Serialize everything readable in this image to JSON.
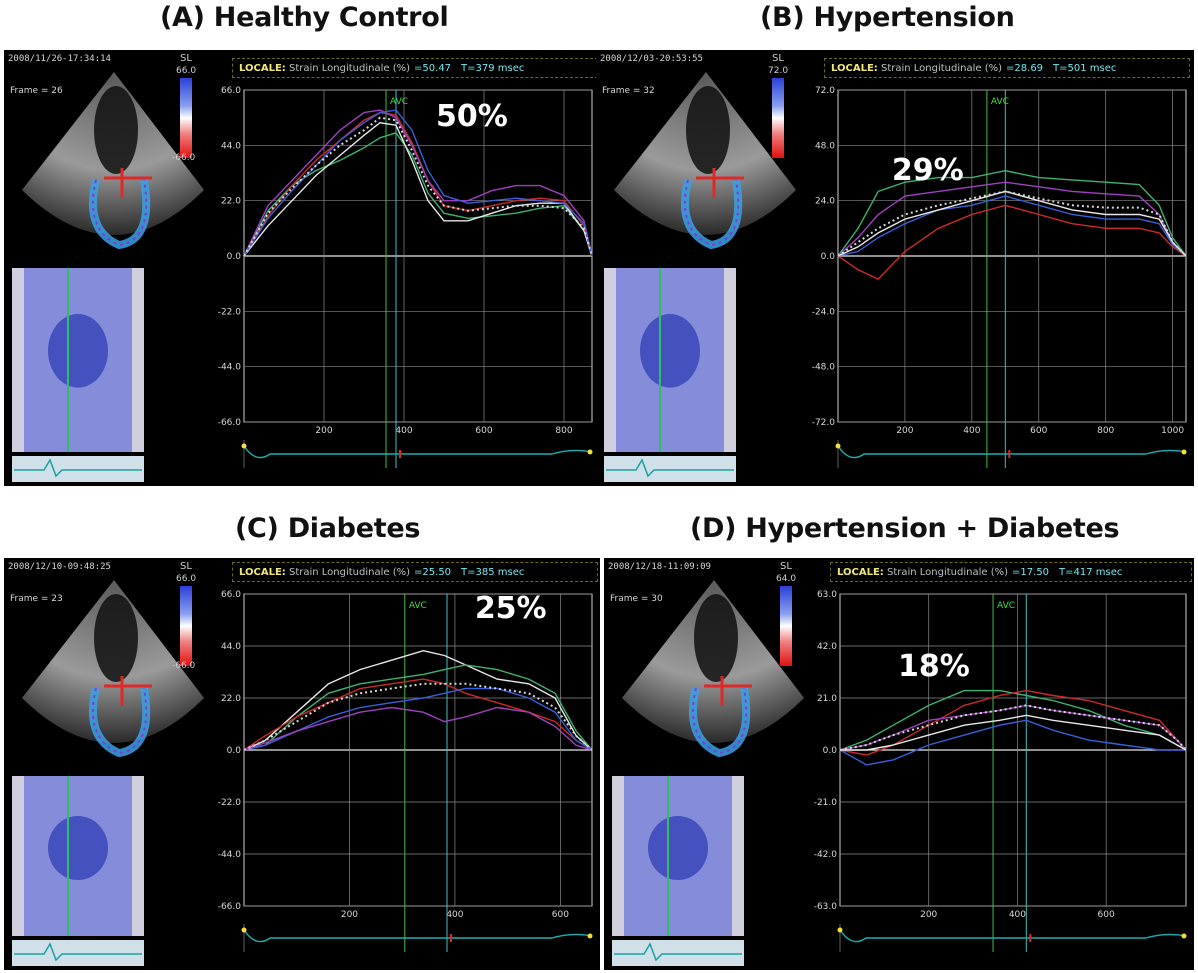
{
  "panels": [
    {
      "title": "(A) Healthy Control",
      "timestamp": "2008/11/26-17:34:14",
      "frame": "Frame = 26",
      "colorbar": {
        "label": "SL",
        "max": "66.0",
        "min": "-66.0"
      },
      "locale": {
        "label": "LOCALE:",
        "desc": "Strain Longitudinale (%)",
        "value": "=50.47",
        "time": "T=379 msec"
      },
      "annotation": "50%",
      "avc_label": "AVC"
    },
    {
      "title": "(B) Hypertension",
      "timestamp": "2008/12/03-20:53:55",
      "frame": "Frame = 32",
      "colorbar": {
        "label": "SL",
        "max": "72.0",
        "min": ""
      },
      "locale": {
        "label": "LOCALE:",
        "desc": "Strain Longitudinale (%)",
        "value": "=28.69",
        "time": "T=501 msec"
      },
      "annotation": "29%",
      "avc_label": "AVC"
    },
    {
      "title": "(C)  Diabetes",
      "timestamp": "2008/12/10-09:48:25",
      "frame": "Frame = 23",
      "colorbar": {
        "label": "SL",
        "max": "66.0",
        "min": "-66.0"
      },
      "locale": {
        "label": "LOCALE:",
        "desc": "Strain Longitudinale (%)",
        "value": "=25.50",
        "time": "T=385 msec"
      },
      "annotation": "25%",
      "avc_label": "AVC"
    },
    {
      "title": "(D)  Hypertension + Diabetes",
      "timestamp": "2008/12/18-11:09:09",
      "frame": "Frame = 30",
      "colorbar": {
        "label": "SL",
        "max": "64.0",
        "min": ""
      },
      "locale": {
        "label": "LOCALE:",
        "desc": "Strain Longitudinale (%)",
        "value": "=17.50",
        "time": "T=417 msec"
      },
      "annotation": "18%",
      "avc_label": "AVC"
    }
  ],
  "chart_data": [
    {
      "type": "line",
      "title": "(A) Healthy Control",
      "xlim": [
        0,
        870
      ],
      "ylim": [
        -66,
        66
      ],
      "yticks": [
        "66.0",
        "44.0",
        "22.0",
        "0.0",
        "-22.0",
        "-44.0",
        "-66.0"
      ],
      "xticks": [
        "200",
        "400",
        "600",
        "800"
      ],
      "avc_lines": [
        355,
        380
      ],
      "series": [
        {
          "color": "#3cb371",
          "x": [
            0,
            60,
            120,
            180,
            240,
            300,
            340,
            380,
            420,
            460,
            500,
            560,
            620,
            680,
            740,
            800,
            850,
            870
          ],
          "y": [
            0,
            18,
            28,
            34,
            38,
            43,
            47,
            49,
            40,
            25,
            17,
            15,
            16,
            17,
            19,
            20,
            10,
            0
          ]
        },
        {
          "color": "#e8e8e8",
          "x": [
            0,
            60,
            120,
            180,
            240,
            300,
            340,
            380,
            420,
            460,
            500,
            560,
            620,
            680,
            740,
            800,
            850,
            870
          ],
          "y": [
            0,
            12,
            22,
            32,
            40,
            48,
            53,
            52,
            38,
            22,
            14,
            14,
            17,
            20,
            21,
            21,
            10,
            0
          ]
        },
        {
          "color": "#cc2a2a",
          "x": [
            0,
            60,
            120,
            180,
            240,
            300,
            340,
            380,
            420,
            460,
            500,
            560,
            620,
            680,
            740,
            800,
            850,
            870
          ],
          "y": [
            0,
            16,
            28,
            38,
            46,
            54,
            57,
            56,
            45,
            30,
            20,
            18,
            20,
            22,
            23,
            22,
            12,
            0
          ]
        },
        {
          "color": "#a040c0",
          "x": [
            0,
            60,
            120,
            180,
            240,
            300,
            340,
            380,
            420,
            460,
            500,
            560,
            620,
            680,
            740,
            800,
            850,
            870
          ],
          "y": [
            0,
            20,
            30,
            40,
            50,
            57,
            58,
            55,
            44,
            30,
            22,
            22,
            26,
            28,
            28,
            24,
            14,
            0
          ]
        },
        {
          "color": "#3a5fd8",
          "x": [
            0,
            60,
            120,
            180,
            240,
            300,
            340,
            380,
            420,
            460,
            500,
            560,
            620,
            680,
            740,
            800,
            850,
            870
          ],
          "y": [
            0,
            15,
            26,
            36,
            46,
            53,
            57,
            58,
            50,
            34,
            24,
            21,
            22,
            23,
            22,
            21,
            13,
            0
          ]
        },
        {
          "color": "#d8d8d8",
          "x": [
            0,
            60,
            120,
            180,
            240,
            300,
            340,
            380,
            420,
            460,
            500,
            560,
            620,
            680,
            740,
            800,
            850,
            870
          ],
          "y": [
            0,
            17,
            27,
            36,
            44,
            50,
            55,
            54,
            42,
            28,
            20,
            18,
            19,
            20,
            20,
            19,
            11,
            0
          ]
        }
      ]
    },
    {
      "type": "line",
      "title": "(B) Hypertension",
      "xlim": [
        0,
        1040
      ],
      "ylim": [
        -72,
        72
      ],
      "yticks": [
        "72.0",
        "48.0",
        "24.0",
        "0.0",
        "-24.0",
        "-48.0",
        "-72.0"
      ],
      "xticks": [
        "200",
        "400",
        "600",
        "800",
        "1000"
      ],
      "avc_lines": [
        445,
        500
      ],
      "series": [
        {
          "color": "#3cb371",
          "x": [
            0,
            60,
            120,
            200,
            300,
            400,
            500,
            600,
            700,
            800,
            900,
            960,
            1000,
            1040
          ],
          "y": [
            0,
            12,
            28,
            32,
            34,
            34,
            37,
            34,
            33,
            32,
            31,
            22,
            8,
            0
          ]
        },
        {
          "color": "#a040c0",
          "x": [
            0,
            60,
            120,
            200,
            300,
            400,
            500,
            600,
            700,
            800,
            900,
            960,
            1000,
            1040
          ],
          "y": [
            0,
            8,
            18,
            26,
            28,
            30,
            32,
            30,
            28,
            27,
            26,
            18,
            6,
            0
          ]
        },
        {
          "color": "#cc2a2a",
          "x": [
            0,
            60,
            120,
            200,
            300,
            400,
            500,
            600,
            700,
            800,
            900,
            960,
            1000,
            1040
          ],
          "y": [
            0,
            -6,
            -10,
            2,
            12,
            18,
            22,
            18,
            14,
            12,
            12,
            10,
            4,
            0
          ]
        },
        {
          "color": "#3a5fd8",
          "x": [
            0,
            60,
            120,
            200,
            300,
            400,
            500,
            600,
            700,
            800,
            900,
            960,
            1000,
            1040
          ],
          "y": [
            0,
            2,
            8,
            14,
            20,
            22,
            26,
            22,
            18,
            16,
            16,
            14,
            5,
            0
          ]
        },
        {
          "color": "#e8e8e8",
          "x": [
            0,
            60,
            120,
            200,
            300,
            400,
            500,
            600,
            700,
            800,
            900,
            960,
            1000,
            1040
          ],
          "y": [
            0,
            4,
            10,
            16,
            20,
            24,
            28,
            24,
            20,
            18,
            18,
            16,
            6,
            0
          ]
        },
        {
          "color": "#d8d8d8",
          "x": [
            0,
            60,
            120,
            200,
            300,
            400,
            500,
            600,
            700,
            800,
            900,
            960,
            1000,
            1040
          ],
          "y": [
            0,
            6,
            12,
            18,
            22,
            25,
            28,
            25,
            22,
            21,
            21,
            18,
            6,
            0
          ]
        }
      ]
    },
    {
      "type": "line",
      "title": "(C)  Diabetes",
      "xlim": [
        0,
        660
      ],
      "ylim": [
        -66,
        66
      ],
      "yticks": [
        "66.0",
        "44.0",
        "22.0",
        "0.0",
        "-22.0",
        "-44.0",
        "-66.0"
      ],
      "xticks": [
        "200",
        "400",
        "600"
      ],
      "avc_lines": [
        305,
        385
      ],
      "series": [
        {
          "color": "#e8e8e8",
          "x": [
            0,
            40,
            100,
            160,
            220,
            280,
            340,
            380,
            420,
            480,
            540,
            590,
            630,
            660
          ],
          "y": [
            0,
            4,
            16,
            28,
            34,
            38,
            42,
            40,
            36,
            30,
            28,
            22,
            6,
            0
          ]
        },
        {
          "color": "#3cb371",
          "x": [
            0,
            40,
            100,
            160,
            220,
            280,
            340,
            380,
            420,
            480,
            540,
            590,
            630,
            660
          ],
          "y": [
            0,
            2,
            14,
            24,
            28,
            30,
            32,
            34,
            36,
            34,
            30,
            24,
            8,
            0
          ]
        },
        {
          "color": "#cc2a2a",
          "x": [
            0,
            40,
            100,
            160,
            220,
            280,
            340,
            380,
            420,
            480,
            540,
            590,
            630,
            660
          ],
          "y": [
            0,
            6,
            14,
            20,
            26,
            28,
            30,
            28,
            24,
            20,
            16,
            12,
            4,
            0
          ]
        },
        {
          "color": "#3a5fd8",
          "x": [
            0,
            40,
            100,
            160,
            220,
            280,
            340,
            380,
            420,
            480,
            540,
            590,
            630,
            660
          ],
          "y": [
            0,
            2,
            8,
            14,
            18,
            20,
            22,
            24,
            26,
            26,
            22,
            16,
            4,
            0
          ]
        },
        {
          "color": "#a040c0",
          "x": [
            0,
            40,
            100,
            160,
            220,
            280,
            340,
            380,
            420,
            480,
            540,
            590,
            630,
            660
          ],
          "y": [
            0,
            3,
            8,
            12,
            16,
            18,
            16,
            12,
            14,
            18,
            16,
            10,
            2,
            0
          ]
        },
        {
          "color": "#d8d8d8",
          "x": [
            0,
            40,
            100,
            160,
            220,
            280,
            340,
            380,
            420,
            480,
            540,
            590,
            630,
            660
          ],
          "y": [
            0,
            4,
            12,
            20,
            24,
            26,
            28,
            28,
            28,
            26,
            24,
            18,
            6,
            0
          ]
        }
      ]
    },
    {
      "type": "line",
      "title": "(D)  Hypertension + Diabetes",
      "xlim": [
        0,
        780
      ],
      "ylim": [
        -63,
        63
      ],
      "yticks": [
        "63.0",
        "42.0",
        "21.0",
        "0.0",
        "-21.0",
        "-42.0",
        "-63.0"
      ],
      "xticks": [
        "200",
        "400",
        "600"
      ],
      "avc_lines": [
        345,
        420
      ],
      "series": [
        {
          "color": "#3cb371",
          "x": [
            0,
            60,
            120,
            200,
            280,
            360,
            420,
            480,
            560,
            640,
            720,
            760,
            780
          ],
          "y": [
            0,
            4,
            10,
            18,
            24,
            24,
            22,
            20,
            16,
            10,
            6,
            2,
            0
          ]
        },
        {
          "color": "#cc2a2a",
          "x": [
            0,
            60,
            120,
            200,
            280,
            360,
            420,
            480,
            560,
            640,
            720,
            760,
            780
          ],
          "y": [
            0,
            -2,
            2,
            10,
            18,
            22,
            24,
            22,
            20,
            16,
            12,
            4,
            0
          ]
        },
        {
          "color": "#a040c0",
          "x": [
            0,
            60,
            120,
            200,
            280,
            360,
            420,
            480,
            560,
            640,
            720,
            760,
            780
          ],
          "y": [
            0,
            2,
            6,
            12,
            14,
            16,
            18,
            16,
            14,
            12,
            10,
            4,
            0
          ]
        },
        {
          "color": "#3a5fd8",
          "x": [
            0,
            60,
            120,
            200,
            280,
            360,
            420,
            480,
            560,
            640,
            720,
            760,
            780
          ],
          "y": [
            0,
            -6,
            -4,
            2,
            6,
            10,
            12,
            8,
            4,
            2,
            0,
            0,
            0
          ]
        },
        {
          "color": "#e8e8e8",
          "x": [
            0,
            60,
            120,
            200,
            280,
            360,
            420,
            480,
            560,
            640,
            720,
            760,
            780
          ],
          "y": [
            0,
            0,
            2,
            6,
            10,
            12,
            14,
            12,
            10,
            8,
            6,
            2,
            0
          ]
        },
        {
          "color": "#d8d8d8",
          "x": [
            0,
            60,
            120,
            200,
            280,
            360,
            420,
            480,
            560,
            640,
            720,
            760,
            780
          ],
          "y": [
            0,
            2,
            6,
            10,
            14,
            16,
            18,
            16,
            14,
            12,
            10,
            4,
            0
          ]
        }
      ]
    }
  ]
}
